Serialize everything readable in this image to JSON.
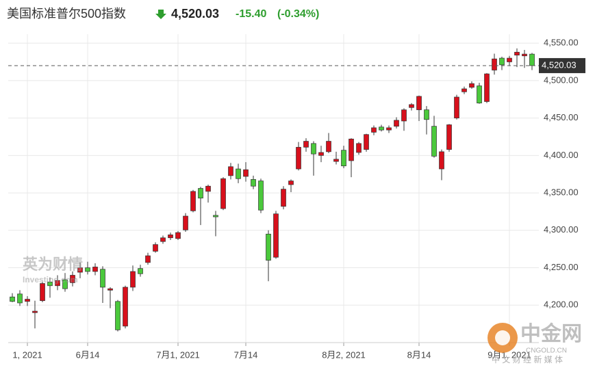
{
  "chart_data": {
    "type": "candlestick",
    "title": "美国标准普尔500指数",
    "price": "4,520.03",
    "change": "-15.40",
    "change_pct": "(-0.34%)",
    "up_color": "#d7101c",
    "down_color": "#4bc93c",
    "grid": true,
    "ylim": [
      4150,
      4562
    ],
    "yticks": [
      {
        "value": 4200,
        "label": "4,200.00"
      },
      {
        "value": 4250,
        "label": "4,250.00"
      },
      {
        "value": 4300,
        "label": "4,300.00"
      },
      {
        "value": 4350,
        "label": "4,350.00"
      },
      {
        "value": 4400,
        "label": "4,400.00"
      },
      {
        "value": 4450,
        "label": "4,450.00"
      },
      {
        "value": 4500,
        "label": "4,500.00"
      },
      {
        "value": 4550,
        "label": "4,550.00"
      }
    ],
    "last_price": {
      "value": 4520.03,
      "label": "4,520.03"
    },
    "categories": [
      null,
      null,
      "1, 2021",
      null,
      null,
      null,
      null,
      null,
      null,
      null,
      "6月14",
      null,
      null,
      null,
      null,
      null,
      null,
      null,
      null,
      null,
      null,
      null,
      "7月1, 2021",
      null,
      null,
      null,
      null,
      null,
      null,
      null,
      null,
      "7月14",
      null,
      null,
      null,
      null,
      null,
      null,
      null,
      null,
      null,
      null,
      null,
      null,
      "8月2, 2021",
      null,
      null,
      null,
      null,
      null,
      null,
      null,
      null,
      null,
      "8月14",
      null,
      null,
      null,
      null,
      null,
      null,
      null,
      null,
      null,
      null,
      null,
      "9月1, 2021",
      null,
      null,
      null
    ],
    "open": [
      4211,
      4215,
      4205,
      4190,
      4206,
      4231,
      4226,
      4234,
      4230,
      4244,
      4250,
      4245,
      4248,
      4220,
      4205,
      4172,
      4224,
      4249,
      4257,
      4272,
      4285,
      4290,
      4289,
      4300.5,
      4326,
      4356,
      4352,
      4320,
      4329,
      4373,
      4382,
      4372,
      4368,
      4366,
      4295,
      4264,
      4332,
      4361,
      4382,
      4411,
      4416,
      4400,
      4405,
      4392,
      4407,
      4393,
      4404,
      4408,
      4431,
      4438,
      4434,
      4439,
      4446,
      4464,
      4461,
      4461,
      4439,
      4382,
      4408,
      4450,
      4485,
      4491,
      4493,
      4472,
      4514,
      4530,
      4525,
      4534,
      4533,
      4535.4
    ],
    "high": [
      4216,
      4220,
      4212,
      4206,
      4231,
      4237,
      4240,
      4243,
      4245,
      4257,
      4258,
      4256,
      4252,
      4224,
      4207,
      4226,
      4253,
      4254,
      4270,
      4284,
      4293,
      4297,
      4299,
      4323,
      4354,
      4358,
      4361,
      4326,
      4371,
      4390,
      4389,
      4391,
      4373,
      4369,
      4300,
      4326,
      4359,
      4368,
      4418,
      4423,
      4419,
      4413,
      4430,
      4405,
      4413,
      4423,
      4418,
      4429,
      4440,
      4441,
      4440,
      4451,
      4463,
      4470,
      4480,
      4466,
      4453,
      4408,
      4442,
      4481,
      4492,
      4499,
      4497,
      4510,
      4536,
      4532,
      4533,
      4543,
      4541,
      4537
    ],
    "low": [
      4204,
      4199,
      4199,
      4169,
      4204,
      4210,
      4220,
      4218,
      4225,
      4236,
      4241,
      4240,
      4203,
      4196,
      4165,
      4169,
      4219,
      4238,
      4254,
      4270,
      4282,
      4287,
      4287,
      4298,
      4324,
      4307,
      4337,
      4292,
      4327,
      4368,
      4363,
      4365,
      4355,
      4323,
      4232,
      4262,
      4328,
      4351,
      4380,
      4405,
      4373,
      4391,
      4403,
      4388,
      4383,
      4371,
      4401,
      4405,
      4427,
      4432,
      4430,
      4436,
      4433,
      4460,
      4446,
      4428,
      4397,
      4367,
      4405,
      4448,
      4482,
      4489,
      4469,
      4470,
      4508,
      4514,
      4520,
      4518,
      4517,
      4514
    ],
    "close": [
      4205,
      4203,
      4208,
      4192,
      4229,
      4226,
      4233,
      4222,
      4240,
      4250,
      4245,
      4251,
      4224,
      4222,
      4167,
      4224,
      4245,
      4242,
      4266,
      4281,
      4290,
      4294,
      4297,
      4319,
      4352,
      4343,
      4359,
      4318,
      4369,
      4385,
      4369,
      4381,
      4359,
      4327,
      4260,
      4322,
      4355,
      4366,
      4411,
      4419,
      4402,
      4404,
      4419,
      4395,
      4386,
      4422,
      4416,
      4428,
      4437,
      4434,
      4437,
      4447,
      4461,
      4468,
      4479,
      4448,
      4399,
      4405,
      4441,
      4478,
      4489,
      4496,
      4470,
      4509,
      4529,
      4521,
      4530,
      4538,
      4535.43,
      4520.03
    ],
    "watermark_left": [
      "英为财情",
      "Investing.com"
    ],
    "watermark_right": [
      "中金网",
      "CNGOLD.CN",
      "中 文 财 经 新 媒 体"
    ]
  }
}
